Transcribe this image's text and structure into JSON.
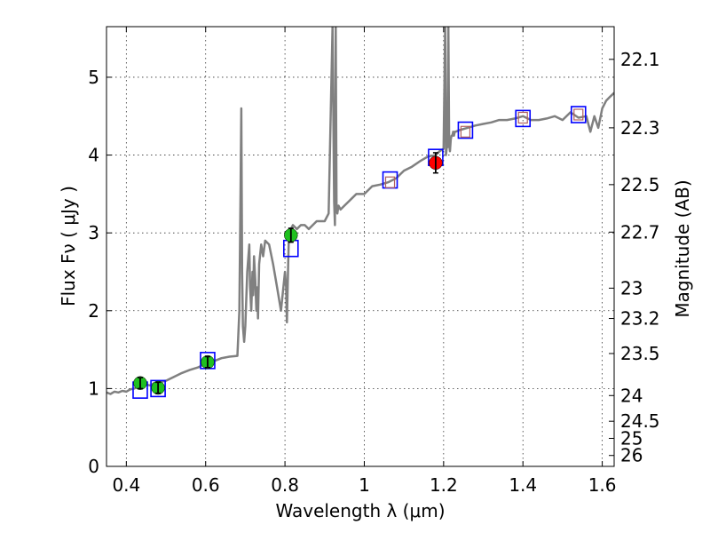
{
  "chart_data": {
    "type": "scatter",
    "title": "",
    "xlabel": "Wavelength  λ (μm)",
    "ylabel": "Flux  Fν  ( μJy )",
    "ylabel_right": "Magnitude (AB)",
    "xlim": [
      0.35,
      1.63
    ],
    "ylim": [
      0,
      5.65
    ],
    "grid": true,
    "x_ticks": [
      0.4,
      0.6,
      0.8,
      1.0,
      1.2,
      1.4,
      1.6
    ],
    "x_tick_labels": [
      "0.4",
      "0.6",
      "0.8",
      "1",
      "1.2",
      "1.4",
      "1.6"
    ],
    "y_ticks": [
      0,
      1,
      2,
      3,
      4,
      5
    ],
    "y_tick_labels": [
      "0",
      "1",
      "2",
      "3",
      "4",
      "5"
    ],
    "right_axis_ticks": [
      {
        "label": "22.1",
        "flux": 5.23
      },
      {
        "label": "22.3",
        "flux": 4.35
      },
      {
        "label": "22.5",
        "flux": 3.62
      },
      {
        "label": "22.7",
        "flux": 3.01
      },
      {
        "label": "23",
        "flux": 2.29
      },
      {
        "label": "23.2",
        "flux": 1.9
      },
      {
        "label": "23.5",
        "flux": 1.45
      },
      {
        "label": "24",
        "flux": 0.91
      },
      {
        "label": "24.5",
        "flux": 0.58
      },
      {
        "label": "25",
        "flux": 0.36
      },
      {
        "label": "26",
        "flux": 0.14
      }
    ],
    "series": [
      {
        "name": "SED model",
        "kind": "line",
        "color": "#808080",
        "x": [
          0.35,
          0.36,
          0.37,
          0.38,
          0.39,
          0.4,
          0.41,
          0.42,
          0.43,
          0.44,
          0.45,
          0.46,
          0.47,
          0.48,
          0.49,
          0.5,
          0.52,
          0.54,
          0.56,
          0.58,
          0.6,
          0.62,
          0.64,
          0.66,
          0.68,
          0.685,
          0.688,
          0.69,
          0.692,
          0.694,
          0.697,
          0.7,
          0.705,
          0.71,
          0.712,
          0.715,
          0.718,
          0.72,
          0.722,
          0.725,
          0.728,
          0.73,
          0.732,
          0.735,
          0.74,
          0.745,
          0.75,
          0.76,
          0.77,
          0.78,
          0.79,
          0.8,
          0.803,
          0.805,
          0.808,
          0.81,
          0.82,
          0.83,
          0.84,
          0.85,
          0.86,
          0.87,
          0.88,
          0.9,
          0.91,
          0.92,
          0.924,
          0.926,
          0.928,
          0.93,
          0.932,
          0.935,
          0.94,
          0.95,
          0.96,
          0.97,
          0.98,
          1.0,
          1.02,
          1.04,
          1.06,
          1.08,
          1.1,
          1.12,
          1.14,
          1.16,
          1.18,
          1.19,
          1.2,
          1.204,
          1.206,
          1.208,
          1.21,
          1.212,
          1.214,
          1.216,
          1.218,
          1.22,
          1.222,
          1.224,
          1.226,
          1.228,
          1.23,
          1.24,
          1.26,
          1.28,
          1.3,
          1.32,
          1.34,
          1.36,
          1.38,
          1.4,
          1.42,
          1.44,
          1.46,
          1.48,
          1.5,
          1.52,
          1.54,
          1.56,
          1.57,
          1.58,
          1.59,
          1.6,
          1.61,
          1.62,
          1.63
        ],
        "y": [
          0.95,
          0.93,
          0.96,
          0.95,
          0.97,
          0.96,
          0.99,
          1.0,
          1.03,
          1.02,
          1.05,
          1.04,
          1.07,
          1.06,
          1.09,
          1.1,
          1.15,
          1.2,
          1.24,
          1.27,
          1.32,
          1.35,
          1.39,
          1.41,
          1.42,
          2.0,
          3.5,
          4.6,
          2.5,
          1.8,
          1.6,
          1.8,
          2.5,
          2.85,
          2.3,
          2.0,
          2.5,
          2.2,
          2.7,
          2.4,
          2.0,
          2.3,
          1.9,
          2.6,
          2.85,
          2.7,
          2.9,
          2.85,
          2.6,
          2.3,
          2.0,
          2.5,
          2.3,
          1.85,
          2.6,
          3.0,
          3.1,
          3.05,
          3.1,
          3.1,
          3.05,
          3.1,
          3.15,
          3.15,
          3.25,
          5.65,
          3.4,
          3.1,
          5.65,
          3.3,
          3.25,
          3.35,
          3.3,
          3.35,
          3.4,
          3.45,
          3.5,
          3.5,
          3.6,
          3.62,
          3.65,
          3.7,
          3.8,
          3.85,
          3.92,
          3.98,
          4.0,
          4.05,
          4.08,
          5.65,
          4.0,
          4.1,
          4.1,
          5.65,
          4.15,
          4.05,
          4.2,
          4.25,
          4.25,
          4.3,
          4.25,
          4.3,
          4.3,
          4.32,
          4.35,
          4.38,
          4.4,
          4.42,
          4.45,
          4.45,
          4.47,
          4.5,
          4.45,
          4.45,
          4.47,
          4.5,
          4.45,
          4.55,
          4.48,
          4.5,
          4.3,
          4.5,
          4.35,
          4.6,
          4.7,
          4.75,
          4.8
        ]
      },
      {
        "name": "Model band fluxes",
        "kind": "open-square",
        "color": "#0000ff",
        "x": [
          0.435,
          0.48,
          0.605,
          0.815,
          1.065,
          1.18,
          1.255,
          1.4,
          1.54
        ],
        "y": [
          0.98,
          1.0,
          1.36,
          2.8,
          3.68,
          3.97,
          4.32,
          4.47,
          4.52
        ]
      },
      {
        "name": "Observed photometry",
        "kind": "point-errorbar",
        "color": "#1fc01f",
        "x": [
          0.435,
          0.48,
          0.605,
          0.815
        ],
        "y": [
          1.07,
          1.01,
          1.34,
          2.97
        ],
        "err": [
          0.07,
          0.07,
          0.07,
          0.09
        ]
      },
      {
        "name": "Detection",
        "kind": "point-errorbar",
        "color": "#ff0000",
        "x": [
          1.18
        ],
        "y": [
          3.9
        ],
        "err": [
          0.13
        ]
      },
      {
        "name": "Upper limits",
        "kind": "small-square",
        "color": "#b06060",
        "x": [
          1.065,
          1.255,
          1.4,
          1.54
        ],
        "y": [
          3.65,
          4.3,
          4.48,
          4.52
        ]
      }
    ]
  }
}
